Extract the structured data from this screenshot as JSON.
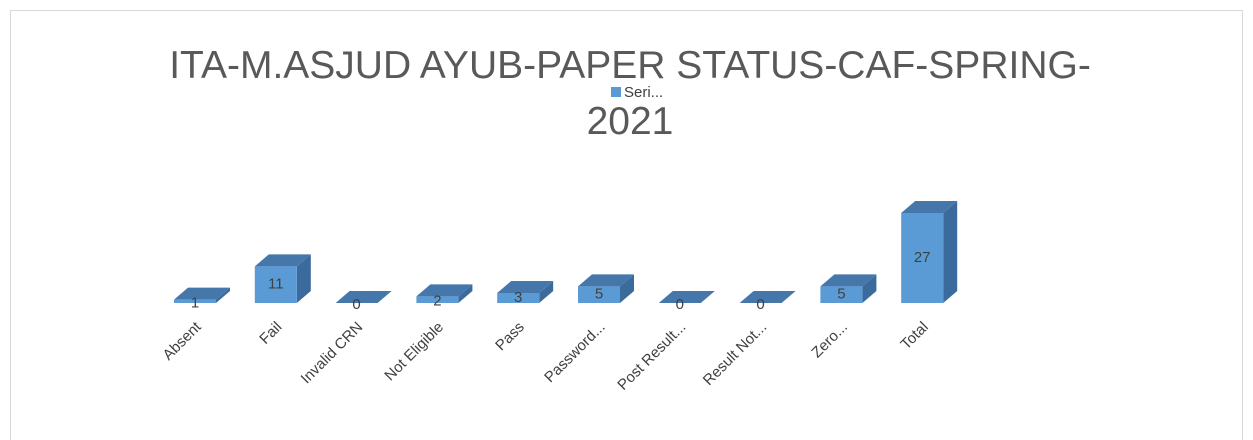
{
  "chart_data": {
    "type": "bar3d",
    "title": "ITA-M.ASJUD AYUB-PAPER STATUS-CAF-SPRING-2021",
    "legend": "Seri...",
    "categories": [
      "Absent",
      "Fail",
      "Invalid CRN",
      "Not Eligible",
      "Pass",
      "Password...",
      "Post Result...",
      "Result Not...",
      "Zero...",
      "Total"
    ],
    "values": [
      1,
      11,
      0,
      2,
      3,
      5,
      0,
      0,
      5,
      27
    ],
    "color": "#5b9bd5",
    "ylim": [
      0,
      30
    ]
  }
}
